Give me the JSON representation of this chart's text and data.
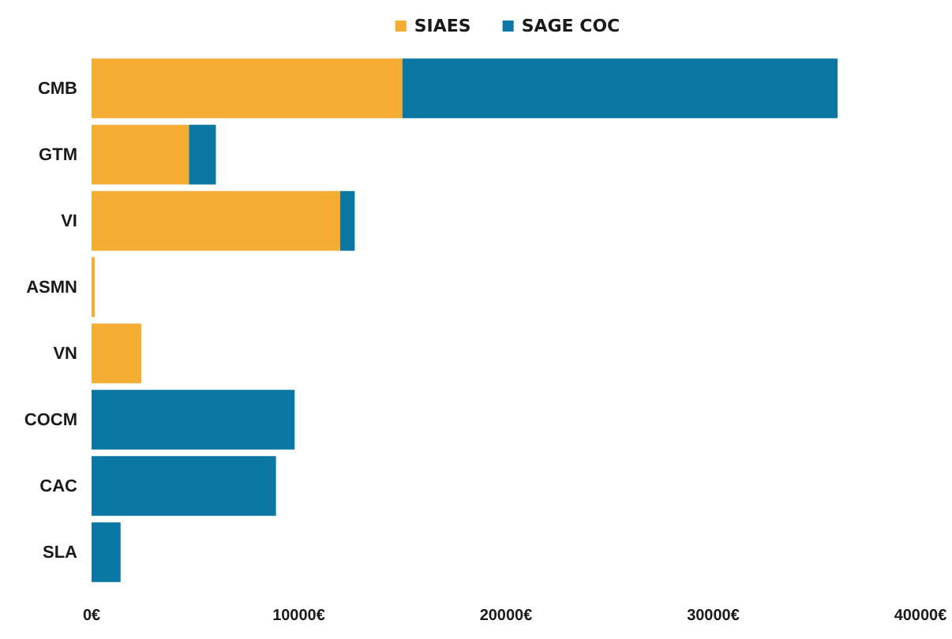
{
  "chart_data": {
    "type": "bar",
    "orientation": "horizontal",
    "stacked": true,
    "categories": [
      "CMB",
      "GTM",
      "VI",
      "ASMN",
      "VN",
      "COCM",
      "CAC",
      "SLA"
    ],
    "series": [
      {
        "name": "SIAES",
        "color": "#f5ac33",
        "values": [
          15000,
          4700,
          12000,
          150,
          2400,
          0,
          0,
          0
        ]
      },
      {
        "name": "SAGE COC",
        "color": "#0a77a5",
        "values": [
          21000,
          1300,
          700,
          0,
          0,
          9800,
          8900,
          1400
        ]
      }
    ],
    "xlim": [
      0,
      40000
    ],
    "xticks": [
      {
        "value": 0,
        "label": "0€"
      },
      {
        "value": 10000,
        "label": "10000€"
      },
      {
        "value": 20000,
        "label": "20000€"
      },
      {
        "value": 30000,
        "label": "30000€"
      },
      {
        "value": 40000,
        "label": "40000€"
      }
    ],
    "grid": false,
    "legend": "top"
  }
}
